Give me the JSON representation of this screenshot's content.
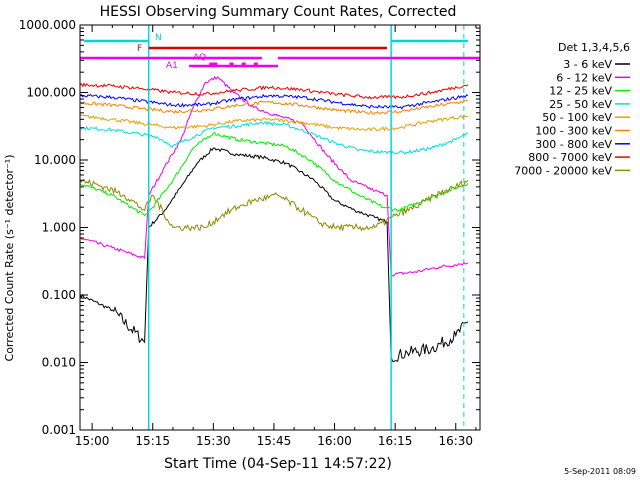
{
  "chart_data": {
    "type": "line",
    "title": "HESSI Observing Summary Count Rates, Corrected",
    "xlabel": "Start Time (04-Sep-11 14:57:22)",
    "ylabel": "Corrected Count Rate (s⁻¹ detector⁻¹)",
    "date_stamp": "5-Sep-2011 08:09",
    "detectors_label": "Det 1,3,4,5,6",
    "y_scale": "log",
    "xlim": [
      "14:57",
      "16:36"
    ],
    "ylim": [
      0.001,
      1000
    ],
    "x_ticks": [
      "15:00",
      "15:15",
      "15:30",
      "15:45",
      "16:00",
      "16:15",
      "16:30"
    ],
    "y_ticks": [
      "0.001",
      "0.010",
      "0.100",
      "1.000",
      "10.000",
      "100.000",
      "1000.000"
    ],
    "grid": false,
    "legend_position": "right",
    "attenuator_state_lines": [
      "15:14",
      "16:14"
    ],
    "night_markers": [
      "14:57",
      "15:14",
      "16:14",
      "16:32"
    ],
    "flags": [
      {
        "label": "N",
        "color": "#00d8d8",
        "segments": [
          [
            "14:58",
            "15:14"
          ],
          [
            "16:14",
            "16:33"
          ]
        ]
      },
      {
        "label": "F",
        "color": "#dd0000",
        "segments": [
          [
            "15:14",
            "16:13"
          ]
        ]
      },
      {
        "label": "",
        "color": "#ee00ee",
        "segments": [
          [
            "14:57",
            "15:42"
          ],
          [
            "15:46",
            "16:36"
          ]
        ]
      },
      {
        "label": "AQ",
        "color": "#ee00ee",
        "segments": [
          [
            "15:29",
            "15:31"
          ],
          [
            "15:34",
            "15:35"
          ],
          [
            "15:37",
            "15:38"
          ],
          [
            "15:40",
            "15:41"
          ]
        ]
      },
      {
        "label": "A1",
        "color": "#ee00ee",
        "segments": [
          [
            "15:24",
            "15:46"
          ]
        ]
      }
    ],
    "series": [
      {
        "name": "3 - 6 keV",
        "color": "#000000",
        "x": [
          "14:57",
          "15:05",
          "15:13",
          "15:14",
          "15:18",
          "15:22",
          "15:26",
          "15:30",
          "15:36",
          "15:42",
          "15:48",
          "15:55",
          "16:00",
          "16:05",
          "16:10",
          "16:13",
          "16:14",
          "16:18",
          "16:24",
          "16:30",
          "16:33"
        ],
        "y": [
          0.1,
          0.06,
          0.02,
          1.0,
          1.8,
          4,
          9,
          15,
          12,
          11,
          9,
          5,
          2.5,
          1.8,
          1.4,
          1.2,
          0.012,
          0.014,
          0.016,
          0.025,
          0.04
        ]
      },
      {
        "name": "6 - 12 keV",
        "color": "#ee00ee",
        "x": [
          "14:57",
          "15:05",
          "15:13",
          "15:14",
          "15:18",
          "15:22",
          "15:25",
          "15:28",
          "15:31",
          "15:35",
          "15:40",
          "15:46",
          "15:52",
          "15:58",
          "16:04",
          "16:10",
          "16:13",
          "16:14",
          "16:20",
          "16:26",
          "16:33"
        ],
        "y": [
          0.7,
          0.5,
          0.35,
          3,
          8,
          20,
          60,
          140,
          170,
          100,
          60,
          45,
          35,
          12,
          5,
          3.5,
          3,
          0.2,
          0.22,
          0.26,
          0.3
        ]
      },
      {
        "name": "12 - 25 keV",
        "color": "#00ee00",
        "x": [
          "14:57",
          "15:05",
          "15:13",
          "15:15",
          "15:20",
          "15:25",
          "15:30",
          "15:36",
          "15:42",
          "15:48",
          "15:54",
          "16:00",
          "16:06",
          "16:12",
          "16:16",
          "16:22",
          "16:28",
          "16:33"
        ],
        "y": [
          4.5,
          3,
          1.5,
          2,
          5,
          15,
          25,
          20,
          18,
          16,
          10,
          5,
          3,
          2,
          1.8,
          2.5,
          3.5,
          4.5
        ]
      },
      {
        "name": "25 - 50 keV",
        "color": "#00e0e0",
        "x": [
          "14:57",
          "15:05",
          "15:12",
          "15:16",
          "15:20",
          "15:25",
          "15:30",
          "15:36",
          "15:42",
          "15:48",
          "15:54",
          "16:00",
          "16:06",
          "16:12",
          "16:18",
          "16:24",
          "16:30",
          "16:33"
        ],
        "y": [
          30,
          28,
          24,
          22,
          16,
          22,
          30,
          32,
          36,
          33,
          25,
          18,
          14,
          13,
          13,
          15,
          20,
          25
        ]
      },
      {
        "name": "50 - 100 keV",
        "color": "#e8a000",
        "x": [
          "14:57",
          "15:05",
          "15:12",
          "15:20",
          "15:28",
          "15:36",
          "15:44",
          "15:52",
          "16:00",
          "16:08",
          "16:16",
          "16:24",
          "16:33"
        ],
        "y": [
          45,
          40,
          35,
          30,
          32,
          38,
          40,
          36,
          30,
          28,
          30,
          38,
          45
        ]
      },
      {
        "name": "100 - 300 keV",
        "color": "#ff8000",
        "x": [
          "14:57",
          "15:05",
          "15:12",
          "15:20",
          "15:28",
          "15:36",
          "15:44",
          "15:52",
          "16:00",
          "16:08",
          "16:16",
          "16:24",
          "16:33"
        ],
        "y": [
          70,
          65,
          58,
          52,
          55,
          65,
          72,
          65,
          55,
          50,
          52,
          62,
          75
        ]
      },
      {
        "name": "300 - 800 keV",
        "color": "#0000ff",
        "x": [
          "14:57",
          "15:05",
          "15:12",
          "15:20",
          "15:28",
          "15:36",
          "15:44",
          "15:52",
          "16:00",
          "16:08",
          "16:16",
          "16:24",
          "16:33"
        ],
        "y": [
          90,
          85,
          75,
          65,
          66,
          80,
          90,
          85,
          72,
          62,
          60,
          72,
          90
        ]
      },
      {
        "name": "800 - 7000 keV",
        "color": "#ee0000",
        "x": [
          "14:57",
          "15:05",
          "15:12",
          "15:20",
          "15:28",
          "15:36",
          "15:44",
          "15:52",
          "16:00",
          "16:08",
          "16:16",
          "16:24",
          "16:33"
        ],
        "y": [
          130,
          125,
          115,
          100,
          95,
          108,
          120,
          110,
          95,
          85,
          85,
          100,
          130
        ]
      },
      {
        "name": "7000 - 20000 keV",
        "color": "#8b8b00",
        "x": [
          "14:57",
          "15:03",
          "15:08",
          "15:13",
          "15:15",
          "15:20",
          "15:25",
          "15:28",
          "15:32",
          "15:36",
          "15:40",
          "15:46",
          "15:52",
          "15:56",
          "16:00",
          "16:05",
          "16:10",
          "16:15",
          "16:20",
          "16:25",
          "16:30",
          "16:33"
        ],
        "y": [
          5,
          4,
          3,
          1.8,
          3,
          1,
          1,
          1,
          1.5,
          2,
          2.5,
          3,
          1.8,
          1.2,
          1,
          1,
          1,
          1.5,
          2,
          3,
          4,
          5
        ]
      }
    ]
  }
}
